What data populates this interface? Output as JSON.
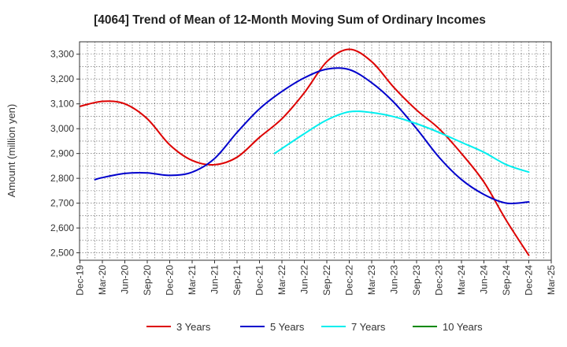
{
  "chart_data": {
    "type": "line",
    "title": "[4064]  Trend of Mean of 12-Month Moving Sum of Ordinary Incomes",
    "xlabel": "",
    "ylabel": "Amount (million yen)",
    "ylim": [
      2470,
      3350
    ],
    "yticks": [
      2500,
      2600,
      2700,
      2800,
      2900,
      3000,
      3100,
      3200,
      3300
    ],
    "ytick_labels": [
      "2,500",
      "2,600",
      "2,700",
      "2,800",
      "2,900",
      "3,000",
      "3,100",
      "3,200",
      "3,300"
    ],
    "xticks": [
      "Dec-19",
      "Mar-20",
      "Jun-20",
      "Sep-20",
      "Dec-20",
      "Mar-21",
      "Jun-21",
      "Sep-21",
      "Dec-21",
      "Mar-22",
      "Jun-22",
      "Sep-22",
      "Dec-22",
      "Mar-23",
      "Jun-23",
      "Sep-23",
      "Dec-23",
      "Mar-24",
      "Jun-24",
      "Sep-24",
      "Dec-24",
      "Mar-25"
    ],
    "grid": true,
    "series": [
      {
        "name": "3 Years",
        "color": "#dd0000",
        "points": [
          [
            0,
            3090
          ],
          [
            1,
            3110
          ],
          [
            2,
            3100
          ],
          [
            3,
            3040
          ],
          [
            4,
            2935
          ],
          [
            5,
            2872
          ],
          [
            6,
            2855
          ],
          [
            7,
            2885
          ],
          [
            8,
            2965
          ],
          [
            9,
            3040
          ],
          [
            10,
            3145
          ],
          [
            11,
            3270
          ],
          [
            12,
            3320
          ],
          [
            13,
            3270
          ],
          [
            14,
            3165
          ],
          [
            15,
            3075
          ],
          [
            16,
            3000
          ],
          [
            17,
            2900
          ],
          [
            18,
            2785
          ],
          [
            19,
            2630
          ],
          [
            20,
            2490
          ]
        ]
      },
      {
        "name": "5 Years",
        "color": "#0000cc",
        "points": [
          [
            0.67,
            2795
          ],
          [
            1,
            2803
          ],
          [
            2,
            2820
          ],
          [
            3,
            2822
          ],
          [
            4,
            2812
          ],
          [
            5,
            2825
          ],
          [
            6,
            2880
          ],
          [
            7,
            2985
          ],
          [
            8,
            3080
          ],
          [
            9,
            3150
          ],
          [
            10,
            3205
          ],
          [
            11,
            3240
          ],
          [
            12,
            3238
          ],
          [
            13,
            3185
          ],
          [
            14,
            3105
          ],
          [
            15,
            3000
          ],
          [
            16,
            2885
          ],
          [
            17,
            2795
          ],
          [
            18,
            2735
          ],
          [
            19,
            2700
          ],
          [
            20,
            2705
          ]
        ]
      },
      {
        "name": "7 Years",
        "color": "#00eeee",
        "points": [
          [
            8.67,
            2900
          ],
          [
            9,
            2920
          ],
          [
            10,
            2980
          ],
          [
            11,
            3035
          ],
          [
            12,
            3068
          ],
          [
            13,
            3065
          ],
          [
            14,
            3048
          ],
          [
            15,
            3020
          ],
          [
            16,
            2985
          ],
          [
            17,
            2945
          ],
          [
            18,
            2905
          ],
          [
            19,
            2855
          ],
          [
            20,
            2825
          ]
        ]
      },
      {
        "name": "10 Years",
        "color": "#008800",
        "points": []
      }
    ]
  }
}
